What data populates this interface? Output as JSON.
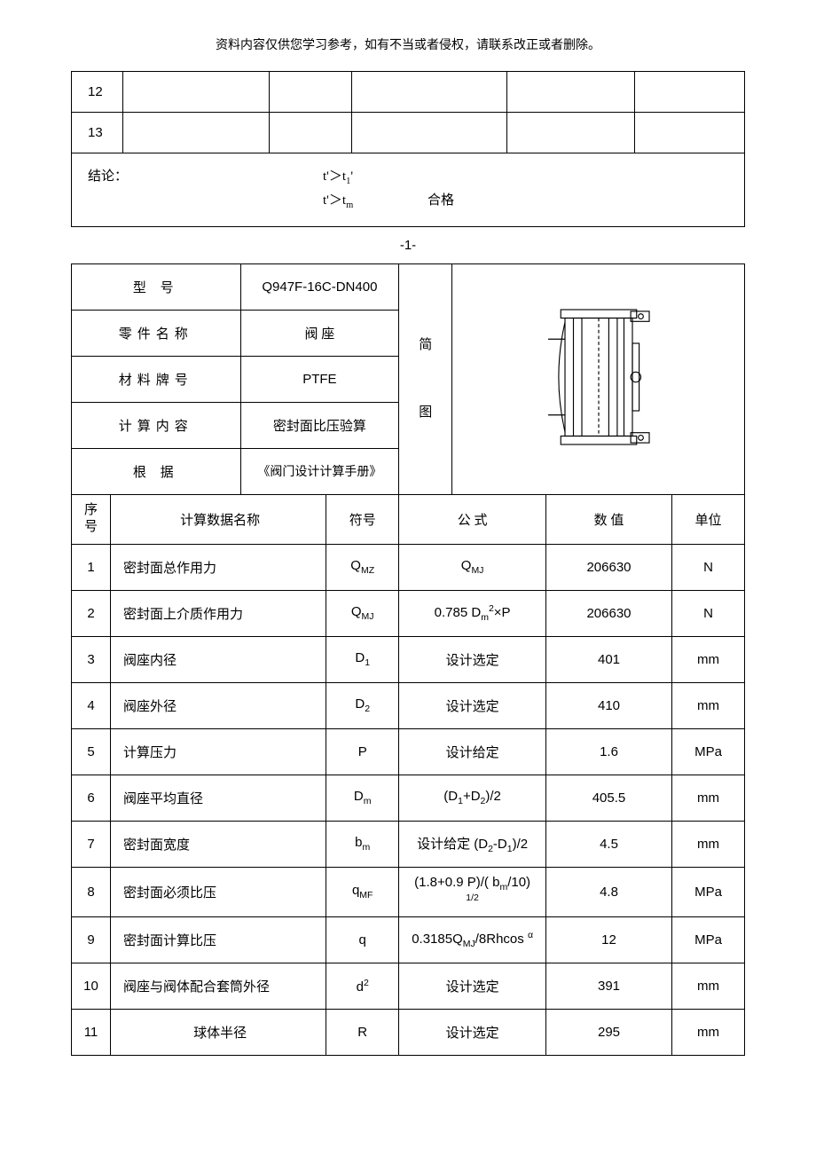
{
  "header_note": "资料内容仅供您学习参考，如有不当或者侵权，请联系改正或者删除。",
  "top_rows": [
    {
      "seq": "12"
    },
    {
      "seq": "13"
    }
  ],
  "conclusion": {
    "label": "结论：",
    "line1_left": "t'＞t",
    "line1_sub": "1",
    "line1_right": "'",
    "line2_left": "t'＞t",
    "line2_sub": "m",
    "line2_status": "合格"
  },
  "page_number": "-1-",
  "meta": {
    "model_label": "型 号",
    "model_value": "Q947F-16C-DN400",
    "part_label": "零件名称",
    "part_value": "阀 座",
    "material_label": "材料牌号",
    "material_value": "PTFE",
    "calc_label": "计算内容",
    "calc_value": "密封面比压验算",
    "basis_label": "根 据",
    "basis_value": "《阀门设计计算手册》",
    "diagram_label_top": "简",
    "diagram_label_bottom": "图"
  },
  "calc_header": {
    "seq": "序号",
    "name": "计算数据名称",
    "symbol": "符号",
    "formula": "公 式",
    "value": "数 值",
    "unit": "单位"
  },
  "rows": [
    {
      "seq": "1",
      "name": "密封面总作用力",
      "sym_html": "Q<sub>MZ</sub>",
      "formula_html": "Q<sub>MJ</sub>",
      "value": "206630",
      "unit": "N"
    },
    {
      "seq": "2",
      "name": "密封面上介质作用力",
      "sym_html": "Q<sub>MJ</sub>",
      "formula_html": "0.785 D<sub>m</sub><sup>2</sup>×P",
      "value": "206630",
      "unit": "N"
    },
    {
      "seq": "3",
      "name": "阀座内径",
      "sym_html": "D<sub>1</sub>",
      "formula_html": "设计选定",
      "value": "401",
      "unit": "mm"
    },
    {
      "seq": "4",
      "name": "阀座外径",
      "sym_html": "D<sub>2</sub>",
      "formula_html": "设计选定",
      "value": "410",
      "unit": "mm"
    },
    {
      "seq": "5",
      "name": "计算压力",
      "sym_html": "P",
      "formula_html": "设计给定",
      "value": "1.6",
      "unit": "MPa"
    },
    {
      "seq": "6",
      "name": "阀座平均直径",
      "sym_html": "D<sub>m</sub>",
      "formula_html": "(D<sub>1</sub>+D<sub>2</sub>)/2",
      "value": "405.5",
      "unit": "mm"
    },
    {
      "seq": "7",
      "name": "密封面宽度",
      "sym_html": "b<sub>m</sub>",
      "formula_html": "设计给定 (D<sub>2</sub>-D<sub>1</sub>)/2",
      "value": "4.5",
      "unit": "mm"
    },
    {
      "seq": "8",
      "name": "密封面必须比压",
      "sym_html": "q<sub>MF</sub>",
      "formula_html": "(1.8+0.9 P)/( b<sub>m</sub>/10)<sup> 1/2</sup>",
      "value": "4.8",
      "unit": "MPa"
    },
    {
      "seq": "9",
      "name": "密封面计算比压",
      "sym_html": "q",
      "formula_html": "0.3185Q<sub>MJ</sub>/8Rhcos <sup>α</sup>",
      "value": "12",
      "unit": "MPa"
    },
    {
      "seq": "10",
      "name": "阀座与阀体配合套筒外径",
      "sym_html": "d<sup>2</sup>",
      "formula_html": "设计选定",
      "value": "391",
      "unit": "mm"
    },
    {
      "seq": "11",
      "name": "球体半径",
      "sym_html": "R",
      "formula_html": "设计选定",
      "value": "295",
      "unit": "mm"
    }
  ]
}
